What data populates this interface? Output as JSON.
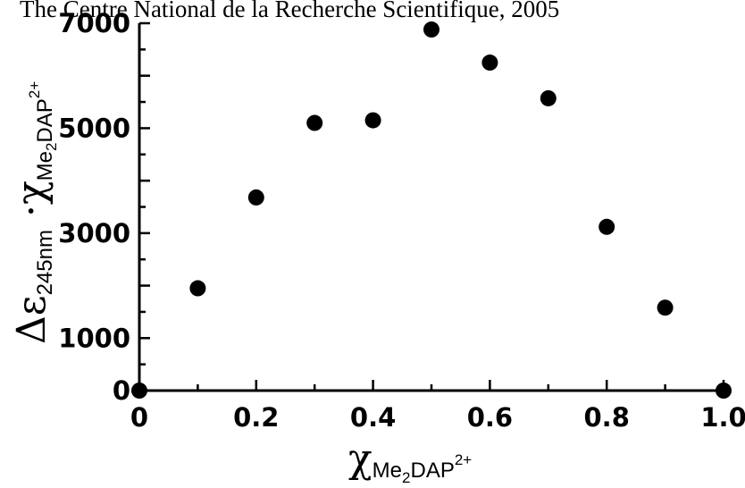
{
  "header": {
    "credit": "The Centre National de la Recherche Scientifique, 2005"
  },
  "chart_data": {
    "type": "scatter",
    "x": [
      0,
      0.1,
      0.2,
      0.3,
      0.4,
      0.5,
      0.6,
      0.7,
      0.8,
      0.9,
      1.0
    ],
    "y": [
      0,
      1950,
      3680,
      5100,
      5150,
      6880,
      6250,
      5570,
      3120,
      1580,
      0
    ],
    "xlim": [
      0,
      1.0
    ],
    "ylim": [
      0,
      7000
    ],
    "grid": false,
    "color": "#000000",
    "x_ticks": [
      "0",
      "0.2",
      "0.4",
      "0.6",
      "0.8",
      "1.0"
    ],
    "y_ticks": [
      "0",
      "1000",
      "3000",
      "5000",
      "7000"
    ],
    "xlabel": {
      "symbol": "χ",
      "subscript": "Me",
      "subscript_sub": "2",
      "subscript_tail": "DAP",
      "subscript_sup": "2+"
    },
    "ylabel": {
      "symbol": "Δε",
      "subscript": "245nm",
      "middle": " ·χ",
      "subscript2": "Me",
      "subscript2_sub": "2",
      "subscript2_tail": "DAP",
      "subscript2_sup": "2+"
    }
  }
}
